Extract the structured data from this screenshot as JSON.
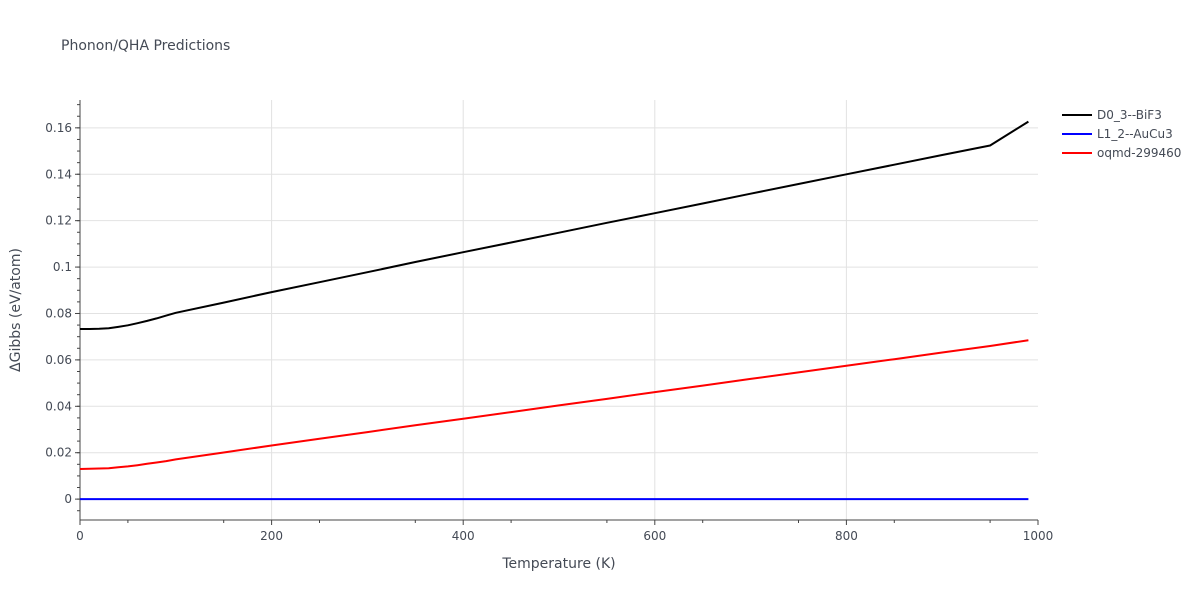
{
  "chart_data": {
    "type": "line",
    "title": "Phonon/QHA Predictions",
    "xlabel": "Temperature (K)",
    "ylabel": "ΔGibbs (eV/atom)",
    "xlim": [
      0,
      1000
    ],
    "ylim": [
      -0.009,
      0.172
    ],
    "x_ticks": [
      0,
      200,
      400,
      600,
      800,
      1000
    ],
    "x_tick_labels": [
      "0",
      "200",
      "400",
      "600",
      "800",
      "1000"
    ],
    "y_ticks": [
      0,
      0.02,
      0.04,
      0.06,
      0.08,
      0.1,
      0.12,
      0.14,
      0.16
    ],
    "y_tick_labels": [
      "0",
      "0.02",
      "0.04",
      "0.06",
      "0.08",
      "0.1",
      "0.12",
      "0.14",
      "0.16"
    ],
    "grid": true,
    "legend_position": "top-right",
    "series": [
      {
        "name": "D0_3--BiF3",
        "color": "#000000",
        "x": [
          0,
          10,
          20,
          30,
          40,
          50,
          60,
          70,
          80,
          90,
          100,
          150,
          200,
          250,
          300,
          350,
          400,
          450,
          500,
          550,
          600,
          650,
          700,
          750,
          800,
          850,
          900,
          950,
          990
        ],
        "y": [
          0.0733,
          0.0733,
          0.0734,
          0.0736,
          0.0742,
          0.0749,
          0.0758,
          0.0768,
          0.0779,
          0.0791,
          0.0803,
          0.0847,
          0.0892,
          0.0935,
          0.0978,
          0.1022,
          0.1064,
          0.1106,
          0.1148,
          0.1191,
          0.1232,
          0.1274,
          0.1316,
          0.1358,
          0.14,
          0.1441,
          0.1483,
          0.1524,
          0.1627
        ]
      },
      {
        "name": "L1_2--AuCu3",
        "color": "#0000ff",
        "x": [
          0,
          200,
          400,
          600,
          800,
          990
        ],
        "y": [
          0,
          0,
          0,
          0,
          0,
          0
        ]
      },
      {
        "name": "oqmd-299460",
        "color": "#ff0000",
        "x": [
          0,
          10,
          20,
          30,
          40,
          50,
          60,
          70,
          80,
          90,
          100,
          150,
          200,
          250,
          300,
          350,
          400,
          450,
          500,
          550,
          600,
          650,
          700,
          750,
          800,
          850,
          900,
          950,
          990
        ],
        "y": [
          0.013,
          0.0131,
          0.0132,
          0.0133,
          0.0137,
          0.0141,
          0.0146,
          0.0152,
          0.0158,
          0.0164,
          0.0171,
          0.0201,
          0.0231,
          0.026,
          0.0289,
          0.0318,
          0.0346,
          0.0375,
          0.0404,
          0.0432,
          0.0461,
          0.0489,
          0.0518,
          0.0546,
          0.0575,
          0.0603,
          0.0632,
          0.066,
          0.0685
        ]
      }
    ]
  }
}
